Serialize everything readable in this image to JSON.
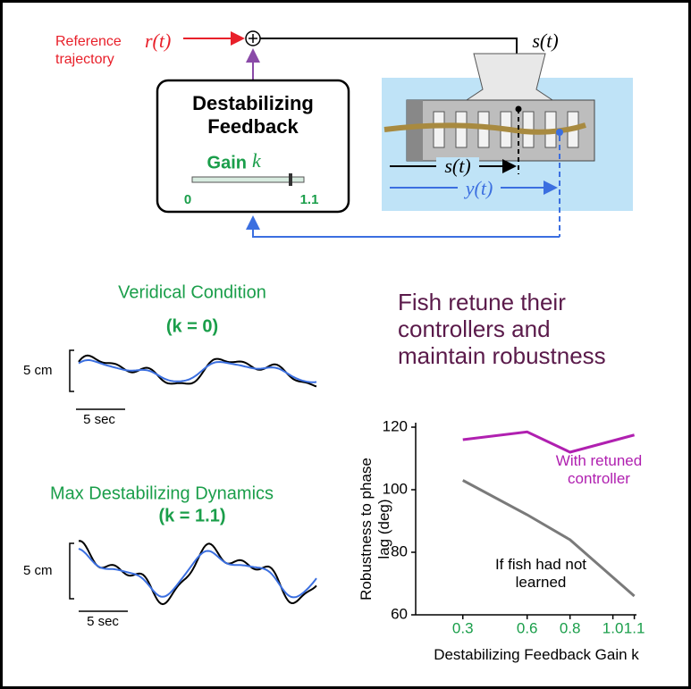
{
  "diagram": {
    "reference_label": "Reference trajectory",
    "reference_symbol": "r(t)",
    "sum_output_symbol": "s(t)",
    "feedback_title": "Destabilizing Feedback",
    "gain_label": "Gain",
    "gain_symbol": "k",
    "gain_min": "0",
    "gain_max": "1.1",
    "tank_s_symbol": "s(t)",
    "tank_y_symbol": "y(t)"
  },
  "panels": [
    {
      "title": "Veridical Condition",
      "condition": "(k = 0)",
      "scale_y": "5 cm",
      "scale_x": "5 sec"
    },
    {
      "title": "Max Destabilizing Dynamics",
      "condition": "(k = 1.1)",
      "scale_y": "5 cm",
      "scale_x": "5 sec"
    }
  ],
  "message": [
    "Fish retune their",
    "controllers and",
    "maintain robustness"
  ],
  "chart_data": {
    "type": "line",
    "y_label": "Robustness to phase lag (deg)",
    "x_label": "Destabilizing Feedback Gain k",
    "x": [
      0.3,
      0.6,
      0.8,
      1.1
    ],
    "series": [
      {
        "name": "With retuned controller",
        "color": "#b020b0",
        "values": [
          116,
          118.5,
          112,
          117.5
        ]
      },
      {
        "name": "If fish had not learned",
        "color": "#7a7a7a",
        "values": [
          103,
          92,
          84,
          66
        ]
      }
    ],
    "xlim": [
      0.08,
      1.11
    ],
    "ylim": [
      60,
      120
    ],
    "xticks": [
      0.3,
      0.6,
      0.8,
      {
        "value": 1,
        "label": "1.0"
      },
      1.1
    ],
    "yticks": [
      60,
      80,
      100,
      120
    ]
  }
}
